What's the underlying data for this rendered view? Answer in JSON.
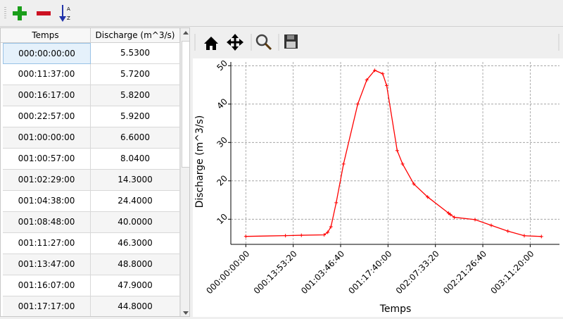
{
  "toolbar": {
    "buttons": [
      {
        "name": "add-row",
        "icon": "plus-icon",
        "color": "#1a9e1a"
      },
      {
        "name": "remove-row",
        "icon": "minus-icon",
        "color": "#cc1122"
      },
      {
        "name": "sort",
        "icon": "sort-a-z-icon",
        "color": "#2233aa"
      }
    ]
  },
  "table": {
    "headers": [
      "Temps",
      "Discharge (m^3/s)"
    ],
    "rows": [
      [
        "000:00:00:00",
        "5.5300"
      ],
      [
        "000:11:37:00",
        "5.7200"
      ],
      [
        "000:16:17:00",
        "5.8200"
      ],
      [
        "000:22:57:00",
        "5.9200"
      ],
      [
        "001:00:00:00",
        "6.6000"
      ],
      [
        "001:00:57:00",
        "8.0400"
      ],
      [
        "001:02:29:00",
        "14.3000"
      ],
      [
        "001:04:38:00",
        "24.4000"
      ],
      [
        "001:08:48:00",
        "40.0000"
      ],
      [
        "001:11:27:00",
        "46.3000"
      ],
      [
        "001:13:47:00",
        "48.8000"
      ],
      [
        "001:16:07:00",
        "47.9000"
      ],
      [
        "001:17:17:00",
        "44.8000"
      ]
    ]
  },
  "plot_toolbar": {
    "buttons": [
      "home-icon",
      "pan-icon",
      "zoom-icon",
      "save-icon"
    ]
  },
  "chart_data": {
    "type": "line",
    "xlabel": "Temps",
    "ylabel": "Discharge (m^3/s)",
    "color": "#ff0000",
    "marker": "+",
    "grid": true,
    "xticks": [
      "000:00:00:00",
      "000:13:53:20",
      "001:03:46:40",
      "001:17:40:00",
      "002:07:33:20",
      "002:21:26:40",
      "003:11:20:00"
    ],
    "yticks": [
      10,
      20,
      30,
      40,
      50
    ],
    "x": [
      "000:00:00:00",
      "000:11:37:00",
      "000:16:17:00",
      "000:22:57:00",
      "001:00:00:00",
      "001:00:57:00",
      "001:02:29:00",
      "001:04:38:00",
      "001:08:48:00",
      "001:11:27:00",
      "001:13:47:00",
      "001:16:07:00",
      "001:17:17:00",
      "001:20:21:00",
      "001:21:56:00",
      "002:01:13:00",
      "002:05:17:00",
      "002:11:24:00",
      "002:11:57:00",
      "002:13:07:00",
      "002:19:10:00",
      "002:23:55:00",
      "003:04:48:00",
      "003:09:36:00",
      "003:14:37:00"
    ],
    "y": [
      5.53,
      5.72,
      5.82,
      5.92,
      6.6,
      8.04,
      14.3,
      24.4,
      40.0,
      46.3,
      48.8,
      47.9,
      44.8,
      27.9,
      24.4,
      19.2,
      15.8,
      11.6,
      11.2,
      10.5,
      9.9,
      8.4,
      6.9,
      5.7,
      5.5
    ]
  }
}
